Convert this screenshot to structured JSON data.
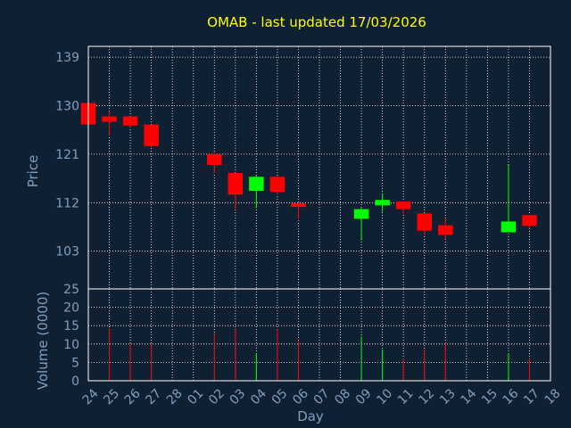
{
  "chart_data": {
    "type": "candlestick",
    "title": "OMAB - last updated 17/03/2026",
    "xlabel": "Day",
    "ylabel": "Price",
    "volume_label": "Volume (0000)",
    "x_ticks": [
      "24",
      "25",
      "26",
      "27",
      "28",
      "01",
      "02",
      "03",
      "04",
      "05",
      "06",
      "07",
      "08",
      "09",
      "10",
      "11",
      "12",
      "13",
      "14",
      "15",
      "16",
      "17",
      "18"
    ],
    "price_ticks": [
      103,
      112,
      121,
      130,
      139
    ],
    "price_ylim": [
      96,
      141
    ],
    "volume_ticks": [
      0,
      5,
      10,
      15,
      20,
      25
    ],
    "volume_ylim": [
      0,
      25
    ],
    "grid": true,
    "candles": [
      {
        "day": "24",
        "open": 130.5,
        "high": 130.5,
        "low": 126.5,
        "close": 126.5,
        "volume": 0
      },
      {
        "day": "25",
        "open": 128.0,
        "high": 129.0,
        "low": 124.5,
        "close": 127.0,
        "volume": 14
      },
      {
        "day": "26",
        "open": 128.0,
        "high": 128.0,
        "low": 126.0,
        "close": 126.3,
        "volume": 10
      },
      {
        "day": "27",
        "open": 126.5,
        "high": 126.5,
        "low": 122.3,
        "close": 122.5,
        "volume": 10
      },
      {
        "day": "02",
        "open": 121.0,
        "high": 121.5,
        "low": 117.5,
        "close": 119.0,
        "volume": 13
      },
      {
        "day": "03",
        "open": 117.5,
        "high": 117.5,
        "low": 110.8,
        "close": 113.5,
        "volume": 14
      },
      {
        "day": "04",
        "open": 114.2,
        "high": 117.2,
        "low": 111.0,
        "close": 116.8,
        "volume": 7.5
      },
      {
        "day": "05",
        "open": 116.8,
        "high": 117.0,
        "low": 113.5,
        "close": 114.0,
        "volume": 14
      },
      {
        "day": "06",
        "open": 111.9,
        "high": 112.0,
        "low": 109.0,
        "close": 111.2,
        "volume": 11
      },
      {
        "day": "09",
        "open": 109.0,
        "high": 111.0,
        "low": 105.0,
        "close": 110.8,
        "volume": 12
      },
      {
        "day": "10",
        "open": 111.5,
        "high": 113.7,
        "low": 110.3,
        "close": 112.5,
        "volume": 8.5
      },
      {
        "day": "11",
        "open": 112.2,
        "high": 112.2,
        "low": 109.8,
        "close": 110.8,
        "volume": 6
      },
      {
        "day": "12",
        "open": 110.0,
        "high": 110.0,
        "low": 106.0,
        "close": 106.8,
        "volume": 8.5
      },
      {
        "day": "13",
        "open": 107.8,
        "high": 109.0,
        "low": 105.2,
        "close": 106.0,
        "volume": 10
      },
      {
        "day": "16",
        "open": 106.5,
        "high": 119.0,
        "low": 106.5,
        "close": 108.5,
        "volume": 7.5
      },
      {
        "day": "17",
        "open": 109.7,
        "high": 109.7,
        "low": 107.2,
        "close": 107.7,
        "volume": 6
      }
    ]
  },
  "colors": {
    "background": "#0f2033",
    "title": "#ffff00",
    "axis_text": "#7f9fbf",
    "grid": "#ffffff",
    "up": "#00ff00",
    "down": "#ff0000"
  }
}
